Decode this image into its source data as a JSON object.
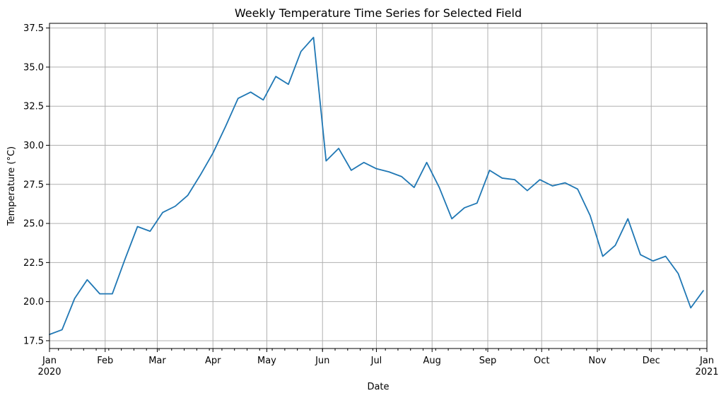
{
  "chart_data": {
    "type": "line",
    "title": "Weekly Temperature Time Series for Selected Field",
    "xlabel": "Date",
    "ylabel": "Temperature (°C)",
    "xlim": [
      "2020-01-01",
      "2021-01-01"
    ],
    "ylim": [
      17.0,
      37.8
    ],
    "grid": true,
    "colors": {
      "series": "#1f77b4",
      "grid": "#b0b0b0"
    },
    "y_ticks": [
      17.5,
      20.0,
      22.5,
      25.0,
      27.5,
      30.0,
      32.5,
      35.0,
      37.5
    ],
    "x_ticks": [
      {
        "date": "2020-01-01",
        "label": "Jan",
        "sublabel": "2020"
      },
      {
        "date": "2020-02-01",
        "label": "Feb",
        "sublabel": ""
      },
      {
        "date": "2020-03-01",
        "label": "Mar",
        "sublabel": ""
      },
      {
        "date": "2020-04-01",
        "label": "Apr",
        "sublabel": ""
      },
      {
        "date": "2020-05-01",
        "label": "May",
        "sublabel": ""
      },
      {
        "date": "2020-06-01",
        "label": "Jun",
        "sublabel": ""
      },
      {
        "date": "2020-07-01",
        "label": "Jul",
        "sublabel": ""
      },
      {
        "date": "2020-08-01",
        "label": "Aug",
        "sublabel": ""
      },
      {
        "date": "2020-09-01",
        "label": "Sep",
        "sublabel": ""
      },
      {
        "date": "2020-10-01",
        "label": "Oct",
        "sublabel": ""
      },
      {
        "date": "2020-11-01",
        "label": "Nov",
        "sublabel": ""
      },
      {
        "date": "2020-12-01",
        "label": "Dec",
        "sublabel": ""
      },
      {
        "date": "2021-01-01",
        "label": "Jan",
        "sublabel": "2021"
      }
    ],
    "series": [
      {
        "color": "#1f77b4",
        "x": [
          "2020-01-01",
          "2020-01-08",
          "2020-01-15",
          "2020-01-22",
          "2020-01-29",
          "2020-02-05",
          "2020-02-12",
          "2020-02-19",
          "2020-02-26",
          "2020-03-04",
          "2020-03-11",
          "2020-03-18",
          "2020-03-25",
          "2020-04-01",
          "2020-04-08",
          "2020-04-15",
          "2020-04-22",
          "2020-04-29",
          "2020-05-06",
          "2020-05-13",
          "2020-05-20",
          "2020-05-27",
          "2020-06-03",
          "2020-06-10",
          "2020-06-17",
          "2020-06-24",
          "2020-07-01",
          "2020-07-08",
          "2020-07-15",
          "2020-07-22",
          "2020-07-29",
          "2020-08-05",
          "2020-08-12",
          "2020-08-19",
          "2020-08-26",
          "2020-09-02",
          "2020-09-09",
          "2020-09-16",
          "2020-09-23",
          "2020-09-30",
          "2020-10-07",
          "2020-10-14",
          "2020-10-21",
          "2020-10-28",
          "2020-11-04",
          "2020-11-11",
          "2020-11-18",
          "2020-11-25",
          "2020-12-02",
          "2020-12-09",
          "2020-12-16",
          "2020-12-23",
          "2020-12-30"
        ],
        "values": [
          17.9,
          18.2,
          20.2,
          21.4,
          20.5,
          20.5,
          22.7,
          24.8,
          24.5,
          25.7,
          26.1,
          26.8,
          28.1,
          29.5,
          31.2,
          33.0,
          33.4,
          32.9,
          34.4,
          33.9,
          36.0,
          36.9,
          29.0,
          29.8,
          28.4,
          28.9,
          28.5,
          28.3,
          28.0,
          27.3,
          28.9,
          27.3,
          25.3,
          26.0,
          26.3,
          28.4,
          27.9,
          27.8,
          27.1,
          27.8,
          27.4,
          27.6,
          27.2,
          25.5,
          22.9,
          23.6,
          25.3,
          23.0,
          22.6,
          22.9,
          21.8,
          19.6,
          20.7
        ]
      }
    ]
  }
}
